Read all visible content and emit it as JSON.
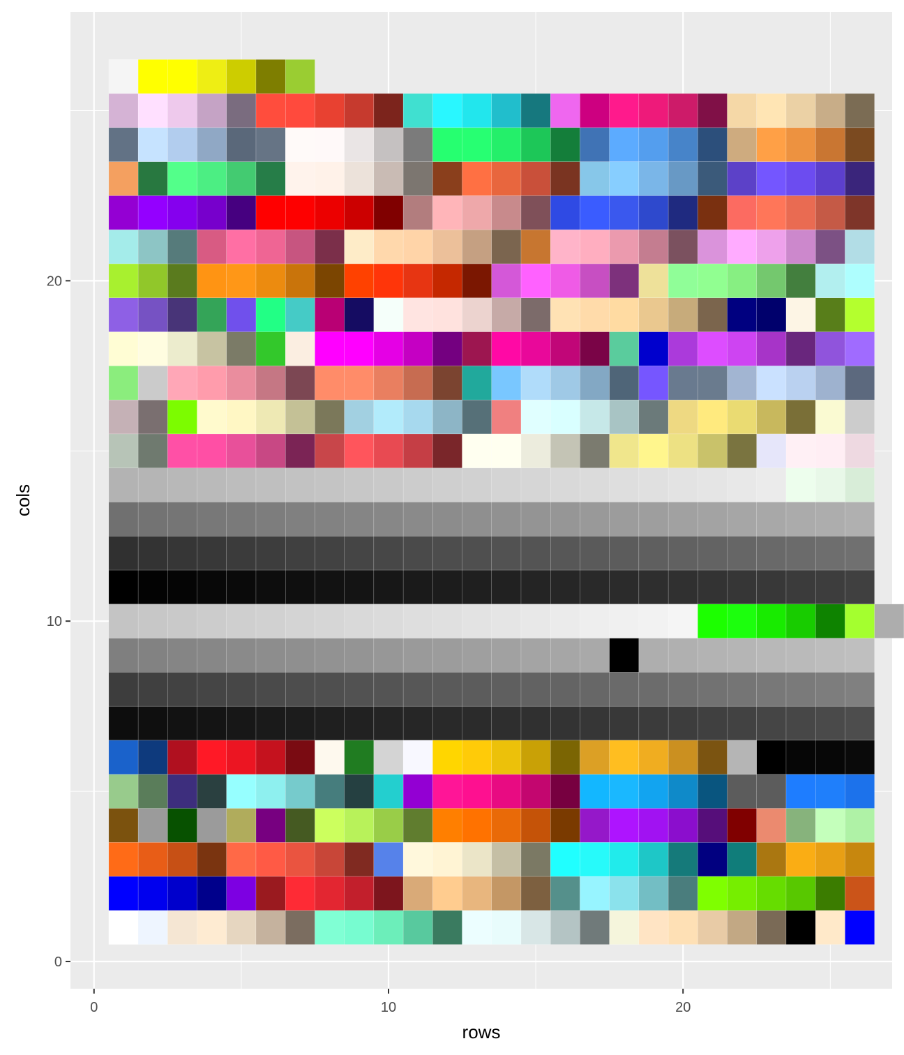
{
  "chart_data": {
    "type": "heatmap",
    "title": "",
    "xlabel": "rows",
    "ylabel": "cols",
    "xlim": [
      -0.8,
      27.1
    ],
    "ylim": [
      -0.8,
      27.9
    ],
    "x_ticks": [
      0,
      10,
      20
    ],
    "y_ticks": [
      0,
      10,
      20
    ],
    "x_tick_labels": [
      "0",
      "10",
      "20"
    ],
    "y_tick_labels": [
      "0",
      "10",
      "20"
    ],
    "grid": true,
    "tile_colors": [
      [
        "#ffffff",
        "#eef5ff",
        "#f5e6d3",
        "#feebd2",
        "#e6d6c0",
        "#c5b29e",
        "#7b6d60",
        "#80ffd4",
        "#77fcd0",
        "#6ceeba",
        "#58c99e",
        "#3a7b60",
        "#ecfeff",
        "#e8fcfc",
        "#d8e6e6",
        "#b4c4c4",
        "#707a7a",
        "#f5f5dc",
        "#ffe4c4",
        "#fee0b5",
        "#e8cba6",
        "#c2a884",
        "#7a6a56",
        "#000000",
        "#ffe9c9",
        "#0000ff"
      ],
      [
        "#0000ff",
        "#0000ee",
        "#0000cc",
        "#00008b",
        "#7d00e2",
        "#9a1a1f",
        "#fe2b35",
        "#e32631",
        "#c21f2c",
        "#7d151d",
        "#d9aa78",
        "#ffcc8f",
        "#e8b67e",
        "#c49765",
        "#7d6040",
        "#55908b",
        "#97f4ff",
        "#8be2ec",
        "#73bec4",
        "#4a7d7d",
        "#7fff00",
        "#76ee00",
        "#66dd00",
        "#58c800",
        "#3b7c00",
        "#cb5419"
      ],
      [
        "#ff6b17",
        "#e85d17",
        "#c75015",
        "#7a3410",
        "#ff6947",
        "#ff5a45",
        "#ea5440",
        "#c84638",
        "#802a21",
        "#5682ea",
        "#fff8dc",
        "#fff4d4",
        "#ebe5c8",
        "#c5bfa5",
        "#7b7964",
        "#20ffff",
        "#27fafa",
        "#21ebeb",
        "#1ec7c7",
        "#157a7a",
        "#010080",
        "#107d7a",
        "#aa7711",
        "#faad14",
        "#e89f14",
        "#c7870e"
      ],
      [
        "#7b520e",
        "#9b9b9b",
        "#075100",
        "#9b9b9b",
        "#b0ac5c",
        "#770080",
        "#455a22",
        "#ccff5e",
        "#b8f25a",
        "#99cd48",
        "#607d2f",
        "#ff7f00",
        "#ff7200",
        "#e96a08",
        "#c55308",
        "#7a3a00",
        "#9518c9",
        "#ae14ff",
        "#a112f2",
        "#8b0ecd",
        "#560e7a",
        "#800000",
        "#eb8a6f",
        "#87b37c",
        "#c4ffbb",
        "#aff2a6"
      ],
      [
        "#98cb8c",
        "#5a7d5a",
        "#3d2e7d",
        "#2a4040",
        "#96ffff",
        "#8ef0ef",
        "#76cbcc",
        "#467d7d",
        "#254041",
        "#23cfcf",
        "#9300d3",
        "#ff1597",
        "#fe1090",
        "#e80b82",
        "#c3066f",
        "#770040",
        "#13b7ff",
        "#1ab8ff",
        "#12a4f0",
        "#0f8ac9",
        "#09557f",
        "#5c5c5c",
        "#5c5c5c",
        "#1e7dff",
        "#1f7ffb",
        "#1c72eb"
      ],
      [
        "#1a62cb",
        "#0e3a7d",
        "#b0101f",
        "#ff1926",
        "#ec1522",
        "#c5121e",
        "#7a0b12",
        "#fef9ee",
        "#207c21",
        "#d4d4d4",
        "#f8f8ff",
        "#ffd600",
        "#ffcb08",
        "#ecc10a",
        "#c9a106",
        "#7b6503",
        "#dca025",
        "#ffbe20",
        "#f0ad20",
        "#cb9020",
        "#7b5411",
        "#b5b5b5",
        "#000000",
        "#060606",
        "#070707",
        "#0a0a0a"
      ],
      [
        "#0d0d0d",
        "#0f0f0f",
        "#121212",
        "#141414",
        "#171717",
        "#1a1a1a",
        "#1c1c1c",
        "#1f1f1f",
        "#212121",
        "#242424",
        "#262626",
        "#292929",
        "#2b2b2b",
        "#2e2e2e",
        "#303030",
        "#333333",
        "#363636",
        "#383838",
        "#3b3b3b",
        "#3d3d3d",
        "#404040",
        "#424242",
        "#454545",
        "#474747",
        "#4a4a4a",
        "#4d4d4d"
      ],
      [
        "#3d3d3d",
        "#404040",
        "#424242",
        "#454545",
        "#474747",
        "#4a4a4a",
        "#4d4d4d",
        "#4f4f4f",
        "#525252",
        "#545454",
        "#575757",
        "#5a5a5a",
        "#5c5c5c",
        "#5f5f5f",
        "#626262",
        "#646464",
        "#676767",
        "#6a6a6a",
        "#6c6c6c",
        "#6f6f6f",
        "#727272",
        "#757575",
        "#787878",
        "#7a7a7a",
        "#7d7d7d",
        "#808080"
      ],
      [
        "#7f7f7f",
        "#828282",
        "#858585",
        "#878787",
        "#8a8a8a",
        "#8d8d8d",
        "#8f8f8f",
        "#929292",
        "#949494",
        "#979797",
        "#9a9a9a",
        "#9c9c9c",
        "#9f9f9f",
        "#a1a1a1",
        "#a4a4a4",
        "#a6a6a6",
        "#a9a9a9",
        "#abababb",
        "#aeaeae",
        "#b0b0b0",
        "#b3b3b3",
        "#b5b5b5",
        "#b8b8b8",
        "#bababa",
        "#bdbdbd",
        "#bfbfbf"
      ],
      [
        "#c4c4c4",
        "#c7c7c7",
        "#c9c9c9",
        "#cccccc",
        "#cfcfcf",
        "#d1d1d1",
        "#d4d4d4",
        "#d6d6d6",
        "#d9d9d9",
        "#dbdbdb",
        "#dedede",
        "#e0e0e0",
        "#e3e3e3",
        "#e5e5e5",
        "#e8e8e8",
        "#ebebeb",
        "#eeeeee",
        "#f0f0f0",
        "#f2f2f2",
        "#f5f5f5",
        "#1cff00",
        "#1cff0d",
        "#18eb00",
        "#18cc00",
        "#0e8300",
        "#a4ff2f",
        "#adadad"
      ],
      [
        "#000000",
        "#030303",
        "#050505",
        "#080808",
        "#0a0a0a",
        "#0d0d0d",
        "#0f0f0f",
        "#121212",
        "#141414",
        "#171717",
        "#1a1a1a",
        "#1c1c1c",
        "#1f1f1f",
        "#212121",
        "#242424",
        "#262626",
        "#292929",
        "#2b2b2b",
        "#2e2e2e",
        "#303030",
        "#333333",
        "#363636",
        "#383838",
        "#3b3b3b",
        "#3d3d3d",
        "#404040"
      ],
      [
        "#303030",
        "#333333",
        "#363636",
        "#383838",
        "#3b3b3b",
        "#3d3d3d",
        "#404040",
        "#424242",
        "#454545",
        "#474747",
        "#4a4a4a",
        "#4d4d4d",
        "#4f4f4f",
        "#525252",
        "#545454",
        "#575757",
        "#5a5a5a",
        "#5c5c5c",
        "#5f5f5f",
        "#616161",
        "#636363",
        "#666666",
        "#696969",
        "#6b6b6b",
        "#6e6e6e",
        "#707070"
      ],
      [
        "#707070",
        "#737373",
        "#757575",
        "#787878",
        "#7a7a7a",
        "#7d7d7d",
        "#808080",
        "#828282",
        "#858585",
        "#878787",
        "#8a8a8a",
        "#8c8c8c",
        "#8f8f8f",
        "#919191",
        "#949494",
        "#969696",
        "#999999",
        "#9c9c9c",
        "#9e9e9e",
        "#a1a1a1",
        "#a3a3a3",
        "#a6a6a6",
        "#a8a8a8",
        "#ababab",
        "#adadad",
        "#b0b0b0"
      ],
      [
        "#b3b3b3",
        "#b5b5b5",
        "#b8b8b8",
        "#bababa",
        "#bdbdbd",
        "#bfbfbf",
        "#c2c2c2",
        "#c4c4c4",
        "#c7c7c7",
        "#c9c9c9",
        "#cccccc",
        "#cfcfcf",
        "#d1d1d1",
        "#d4d4d4",
        "#d6d6d6",
        "#d9d9d9",
        "#dbdbdb",
        "#dedede",
        "#e0e0e0",
        "#e3e3e3",
        "#e5e5e5",
        "#e8e8e8",
        "#ebebeb",
        "#edfeed",
        "#e8f8e8",
        "#d8edd8"
      ],
      [
        "#b7c4b7",
        "#6f7a6f",
        "#ff50a6",
        "#ff4fa5",
        "#e8509a",
        "#c84884",
        "#7b2455",
        "#c8464a",
        "#ff555c",
        "#e84a52",
        "#c53e45",
        "#7a262a",
        "#fffff0",
        "#fffff0",
        "#ececdd",
        "#c4c4b5",
        "#7b7b6f",
        "#f0e68c",
        "#fff68d",
        "#ede183",
        "#c9c26a",
        "#7a7440",
        "#e6e6fa",
        "#fff0f5",
        "#ffeef4",
        "#eed9e1"
      ],
      [
        "#c5b1b6",
        "#7a6f70",
        "#7cfc00",
        "#fffacd",
        "#fff7c4",
        "#eee9b4",
        "#c4c196",
        "#7b785a",
        "#a2d0e1",
        "#b2ebfb",
        "#a7d9ee",
        "#8db5c6",
        "#567078",
        "#f08080",
        "#e0ffff",
        "#d9ffff",
        "#c6e8e8",
        "#a8c4c4",
        "#6b7a7a",
        "#eed982",
        "#ffea7e",
        "#eadb72",
        "#c8b85d",
        "#7a6f37",
        "#fafad2",
        "#cccccc"
      ],
      [
        "#8bed7d",
        "#cbcbcb",
        "#ffa7b7",
        "#ff9cac",
        "#ea8d9e",
        "#c57784",
        "#7c4753",
        "#ff8c69",
        "#ff8c69",
        "#e97f60",
        "#c76c51",
        "#7b4430",
        "#21a99c",
        "#79c7ff",
        "#b0dcfa",
        "#9fc9e6",
        "#83a8c4",
        "#4f6578",
        "#7656ff",
        "#697a8f",
        "#6a7b8e",
        "#a2b5d2",
        "#cae1ff",
        "#bad1f0",
        "#9eb2cf",
        "#5c697e"
      ],
      [
        "#fffdd4",
        "#fffde0",
        "#ececcd",
        "#c7c3a2",
        "#7b7b67",
        "#33c82b",
        "#fbeee1",
        "#ff00ff",
        "#ff00ff",
        "#e500e5",
        "#c500c3",
        "#740080",
        "#9d1650",
        "#ff09a5",
        "#e9089a",
        "#c10678",
        "#7a0447",
        "#5acc9d",
        "#0000cd",
        "#ab3adb",
        "#dd4dff",
        "#ce44f2",
        "#a734c8",
        "#69267d",
        "#9054dc",
        "#a06bff"
      ],
      [
        "#8e60e5",
        "#7652c3",
        "#483478",
        "#34a458",
        "#7050ec",
        "#22ff85",
        "#45cbc6",
        "#b90074",
        "#150c62",
        "#f5fffa",
        "#ffe4e1",
        "#ffe2de",
        "#ecd3cf",
        "#c6aaa7",
        "#7c6b6a",
        "#ffe2b4",
        "#ffdbaa",
        "#ffdba2",
        "#eac88f",
        "#c7ab7b",
        "#7b654d",
        "#000080",
        "#00006c",
        "#fdf5e5",
        "#587e1a",
        "#b4ff2e"
      ],
      [
        "#a8f02f",
        "#91c72a",
        "#5a7b1e",
        "#ff9413",
        "#ff9717",
        "#ec8b0f",
        "#c9740b",
        "#7b4501",
        "#ff4100",
        "#ff3509",
        "#e73512",
        "#c52800",
        "#7b1701",
        "#d458d8",
        "#ff61ff",
        "#ef5be6",
        "#c74fc2",
        "#7d317c",
        "#eee19a",
        "#90fe98",
        "#91ff91",
        "#87ef82",
        "#74c86e",
        "#437f3e",
        "#b2efef",
        "#aefefe"
      ],
      [
        "#a4ecea",
        "#8dc5c5",
        "#567b7b",
        "#d85b83",
        "#ff6fa4",
        "#ef6594",
        "#c75580",
        "#7b2f4a",
        "#feecc8",
        "#ffd8ac",
        "#ffd4a8",
        "#ecc09a",
        "#c5a082",
        "#7b654f",
        "#c77630",
        "#ffb4c9",
        "#ffaec0",
        "#eb9aae",
        "#c47d90",
        "#7b515f",
        "#da93db",
        "#ffabff",
        "#eea1eb",
        "#cc88cc",
        "#7c5184",
        "#b2dde6"
      ],
      [
        "#9400d3",
        "#9400ff",
        "#8500ee",
        "#7700cc",
        "#460080",
        "#ff0000",
        "#fe0000",
        "#ec0000",
        "#cc0000",
        "#800000",
        "#b27d7e",
        "#ffb5b9",
        "#eea8aa",
        "#c88a8c",
        "#7f5059",
        "#2f4ae4",
        "#3a5cff",
        "#3a58ee",
        "#2e49cd",
        "#1f2a80",
        "#7a3010",
        "#fc6b61",
        "#ff7659",
        "#e96b52",
        "#c55a46",
        "#7e3529"
      ],
      [
        "#f4a060",
        "#287840",
        "#53ff8a",
        "#4cee83",
        "#43cb71",
        "#267d48",
        "#fff3ec",
        "#fff2e9",
        "#ece2da",
        "#c9bbb4",
        "#7c7670",
        "#8a3f1c",
        "#ff7043",
        "#e8663e",
        "#c9503a",
        "#7a3421",
        "#87c7e9",
        "#87ceff",
        "#7ab6e8",
        "#6899c5",
        "#3b5a7a",
        "#5c41c8",
        "#7456ff",
        "#6c4cf0",
        "#5c3fcd",
        "#3a257b"
      ],
      [
        "#627285",
        "#c6e3ff",
        "#b2cdee",
        "#90a8c5",
        "#5a687a",
        "#667485",
        "#fffaf9",
        "#fff9f9",
        "#eae5e5",
        "#c5c1c1",
        "#7b7b7b",
        "#26ff70",
        "#27ff72",
        "#24ef6a",
        "#1dc758",
        "#147e3a",
        "#4073b5",
        "#5cabff",
        "#549eee",
        "#4784c9",
        "#2c4f7b",
        "#ceab7f",
        "#ffa046",
        "#ed9240",
        "#c97632",
        "#7b4a20"
      ],
      [
        "#d5b3d5",
        "#ffe0ff",
        "#eec9ec",
        "#c5a3c5",
        "#7a6c7f",
        "#ff4d3d",
        "#ff4a3d",
        "#e84131",
        "#c63a2e",
        "#7c241c",
        "#40e0d0",
        "#29f7ff",
        "#22e6ed",
        "#21becc",
        "#16787e",
        "#ef67ef",
        "#cd0080",
        "#ff1a8c",
        "#ee1a7a",
        "#cd1b69",
        "#801047",
        "#f5d8a7",
        "#ffe5b4",
        "#ebd1a5",
        "#c8ad88",
        "#7b6c54"
      ],
      [
        "#f5f5f5",
        "#ffff00",
        "#ffff00",
        "#eeee14",
        "#cdcd00",
        "#7e7e00",
        "#9acd32"
      ]
    ]
  }
}
